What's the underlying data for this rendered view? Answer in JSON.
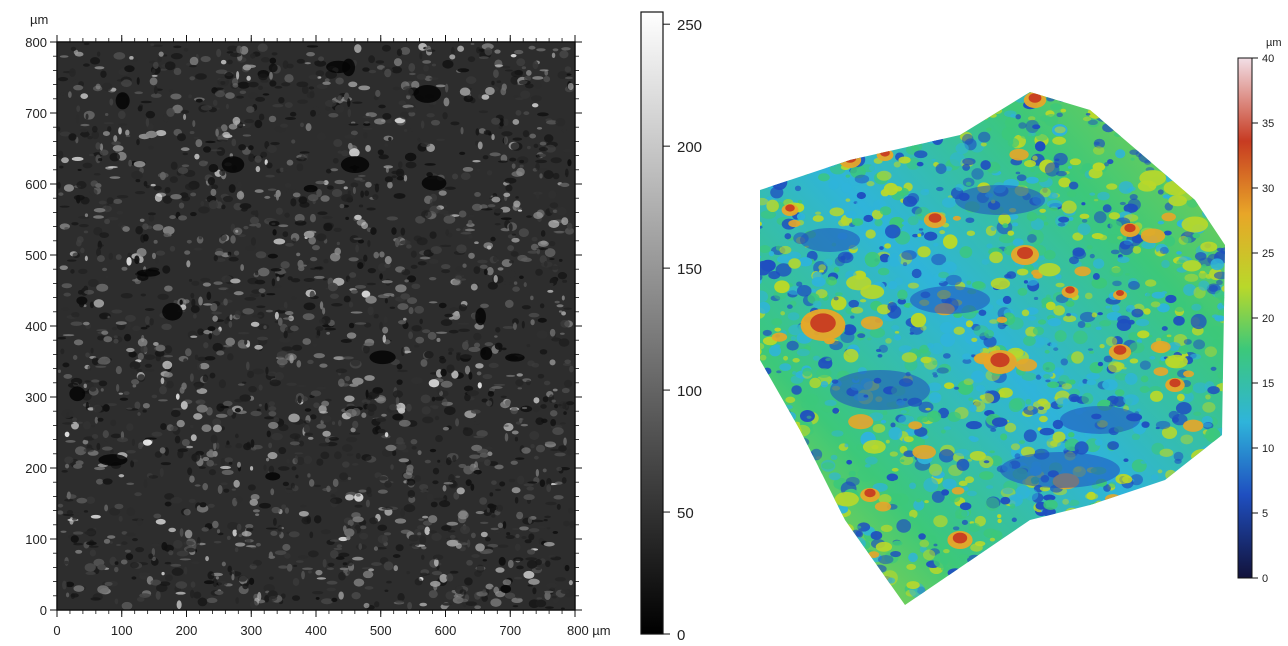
{
  "chart_data": [
    {
      "type": "heatmap",
      "subtype": "grayscale surface intensity map",
      "title": "",
      "x_unit_label": "µm",
      "y_unit_label": "µm",
      "xlim": [
        0,
        800
      ],
      "ylim": [
        0,
        800
      ],
      "x_ticks": [
        "0",
        "100",
        "200",
        "300",
        "400",
        "500",
        "600",
        "700",
        "800 µm"
      ],
      "y_ticks": [
        "0",
        "100",
        "200",
        "300",
        "400",
        "500",
        "600",
        "700",
        "800"
      ],
      "y_axis_top_label": "µm",
      "colorbar": {
        "colormap": "grayscale",
        "range": [
          0,
          255
        ],
        "ticks": [
          "0",
          "50",
          "100",
          "150",
          "200",
          "250"
        ]
      },
      "grid": false
    },
    {
      "type": "heatmap",
      "subtype": "3D height surface",
      "title": "",
      "colorbar": {
        "unit": "µm",
        "colormap": "rainbow (dark blue → blue → cyan → green → yellow → orange → red → white)",
        "range": [
          0,
          40
        ],
        "ticks": [
          "0",
          "5",
          "10",
          "15",
          "20",
          "25",
          "30",
          "35",
          "40"
        ]
      },
      "grid": false
    }
  ],
  "colors": {
    "low": "#000000",
    "high": "#ffffff",
    "height_stops": [
      "#12123a",
      "#1f4fc0",
      "#2fb4da",
      "#3cc87a",
      "#b9d82a",
      "#e8a628",
      "#c73b22",
      "#f2dfe6"
    ]
  }
}
